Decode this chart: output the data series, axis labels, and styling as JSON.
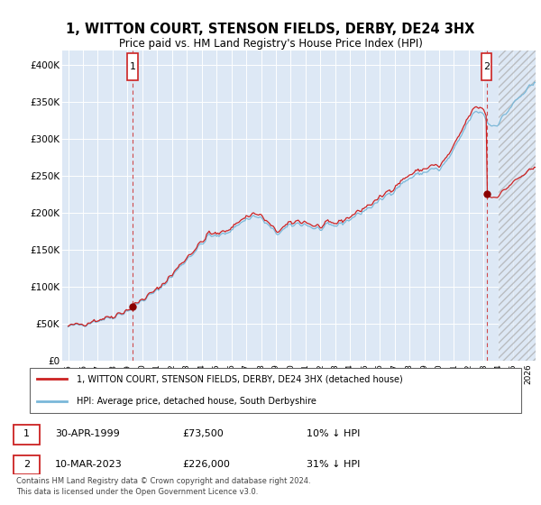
{
  "title": "1, WITTON COURT, STENSON FIELDS, DERBY, DE24 3HX",
  "subtitle": "Price paid vs. HM Land Registry's House Price Index (HPI)",
  "legend_line1": "1, WITTON COURT, STENSON FIELDS, DERBY, DE24 3HX (detached house)",
  "legend_line2": "HPI: Average price, detached house, South Derbyshire",
  "annotation1_date": "30-APR-1999",
  "annotation1_price": "£73,500",
  "annotation1_hpi": "10% ↓ HPI",
  "annotation2_date": "10-MAR-2023",
  "annotation2_price": "£226,000",
  "annotation2_hpi": "31% ↓ HPI",
  "footnote": "Contains HM Land Registry data © Crown copyright and database right 2024.\nThis data is licensed under the Open Government Licence v3.0.",
  "hpi_color": "#7ab8d9",
  "price_color": "#cc2222",
  "dot_color": "#8b0000",
  "background_color": "#dde8f5",
  "hatch_color": "#b0bec5",
  "ylim": [
    0,
    420000
  ],
  "yticks": [
    0,
    50000,
    100000,
    150000,
    200000,
    250000,
    300000,
    350000,
    400000
  ],
  "ytick_labels": [
    "£0",
    "£50K",
    "£100K",
    "£150K",
    "£200K",
    "£250K",
    "£300K",
    "£350K",
    "£400K"
  ],
  "sale1_x": 1999.33,
  "sale1_y": 73500,
  "sale2_x": 2023.19,
  "sale2_y": 226000,
  "hatch_start": 2024.0,
  "hatch_end": 2026.5,
  "xlim_left": 1994.6,
  "xlim_right": 2026.5
}
